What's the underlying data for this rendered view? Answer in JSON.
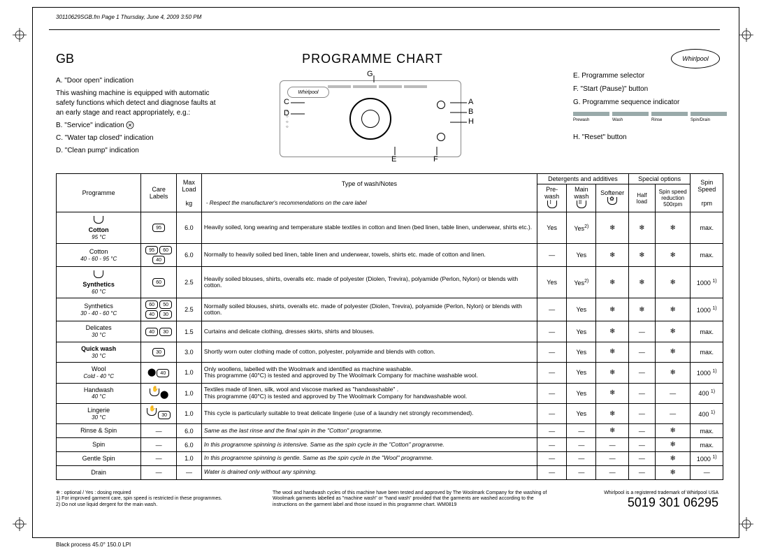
{
  "meta": {
    "header_line": "30110629SGB.fm  Page 1  Thursday, June 4, 2009  3:50 PM",
    "footer_process": "Black process 45.0° 150.0 LPI"
  },
  "title": {
    "gb": "GB",
    "main": "PROGRAMME CHART",
    "brand": "Whirlpool"
  },
  "legend_left": {
    "a": "A.  \"Door open\" indication",
    "a_desc": "This washing machine is equipped with automatic safety functions which detect and diagnose faults at an early stage and react appropriately, e.g.:",
    "b": "B.  \"Service\" indication",
    "c": "C.  \"Water tap closed\" indication",
    "d": "D.  \"Clean pump\" indication"
  },
  "legend_right": {
    "e": "E.  Programme selector",
    "f": "F.  \"Start (Pause)\" button",
    "g": "G.  Programme sequence indicator",
    "h": "H.  \"Reset\" button",
    "seq": [
      "Prewash",
      "Wash",
      "Rinse",
      "Spin/Drain"
    ]
  },
  "panel_letters": {
    "G": "G",
    "C": "C",
    "D": "D",
    "A": "A",
    "B": "B",
    "H": "H",
    "E": "E",
    "F": "F"
  },
  "table": {
    "headers": {
      "programme": "Programme",
      "care": "Care Labels",
      "maxload": "Max Load",
      "maxload_unit": "kg",
      "notes_hdr": "Type of wash/Notes",
      "notes_sub": "- Respect the manufacturer's recommendations on the care label",
      "detergents": "Detergents and additives",
      "prewash": "Pre-wash",
      "mainwash": "Main wash",
      "softener": "Softener",
      "special": "Special options",
      "halfload": "Half load",
      "spinred": "Spin speed reduction 500rpm",
      "spinspeed": "Spin Speed",
      "spinspeed_unit": "rpm"
    },
    "rows": [
      {
        "prog": "Cotton",
        "sub": "95 °C",
        "care": [
          "95"
        ],
        "load": "6.0",
        "notes": "Heavily soiled, long wearing and temperature stable textiles in cotton and linen (bed linen, table linen, underwear, shirts etc.).",
        "pw": "Yes",
        "mw": "Yes",
        "mw_sup": "2)",
        "so": "❄",
        "hl": "❄",
        "sr": "❄",
        "sp": "max.",
        "bold": true,
        "icon": "tub"
      },
      {
        "prog": "Cotton",
        "sub": "40 - 60 - 95 °C",
        "care": [
          "95",
          "60",
          "40"
        ],
        "load": "6.0",
        "notes": "Normally to heavily soiled bed linen, table linen and underwear, towels, shirts etc. made of cotton and linen.",
        "pw": "—",
        "mw": "Yes",
        "mw_sup": "",
        "so": "❄",
        "hl": "❄",
        "sr": "❄",
        "sp": "max."
      },
      {
        "prog": "Synthetics",
        "sub": "60 °C",
        "care": [
          "60"
        ],
        "load": "2.5",
        "notes": "Heavily soiled blouses, shirts, overalls etc. made of polyester (Diolen, Trevira), polyamide (Perlon, Nylon) or blends with cotton.",
        "pw": "Yes",
        "mw": "Yes",
        "mw_sup": "2)",
        "so": "❄",
        "hl": "❄",
        "sr": "❄",
        "sp": "1000",
        "sp_sup": "1)",
        "bold": true,
        "icon": "tub"
      },
      {
        "prog": "Synthetics",
        "sub": "30 - 40 - 60 °C",
        "care": [
          "60",
          "50",
          "40",
          "30"
        ],
        "load": "2.5",
        "notes": "Normally soiled blouses, shirts, overalls etc. made of polyester (Diolen, Trevira), polyamide (Perlon, Nylon) or blends with cotton.",
        "pw": "—",
        "mw": "Yes",
        "mw_sup": "",
        "so": "❄",
        "hl": "❄",
        "sr": "❄",
        "sp": "1000",
        "sp_sup": "1)"
      },
      {
        "prog": "Delicates",
        "sub": "30 °C",
        "care": [
          "40",
          "30"
        ],
        "load": "1.5",
        "notes": "Curtains and delicate clothing, dresses skirts, shirts and blouses.",
        "pw": "—",
        "mw": "Yes",
        "mw_sup": "",
        "so": "❄",
        "hl": "—",
        "sr": "❄",
        "sp": "max."
      },
      {
        "prog": "Quick wash",
        "sub": "30 °C",
        "care": [
          "30"
        ],
        "load": "3.0",
        "notes": "Shortly worn outer clothing made of cotton, polyester, polyamide and blends with cotton.",
        "pw": "—",
        "mw": "Yes",
        "mw_sup": "",
        "so": "❄",
        "hl": "—",
        "sr": "❄",
        "sp": "max.",
        "bold": true
      },
      {
        "prog": "Wool",
        "sub": "Cold - 40 °C",
        "care": [
          "⬤",
          "40"
        ],
        "load": "1.0",
        "notes": "Only woollens, labelled with the Woolmark and identified as machine washable.\nThis programme (40°C) is tested and approved by The Woolmark Company for machine washable wool.",
        "pw": "—",
        "mw": "Yes",
        "mw_sup": "",
        "so": "❄",
        "hl": "—",
        "sr": "❄",
        "sp": "1000",
        "sp_sup": "1)"
      },
      {
        "prog": "Handwash",
        "sub": "40 °C",
        "care": [
          "✋",
          "⬤"
        ],
        "load": "1.0",
        "notes": "Textiles made of linen, silk, wool and viscose marked as \"handwashable\" .\nThis programme (40°C) is tested and approved by The Woolmark Company for handwashable wool.",
        "pw": "—",
        "mw": "Yes",
        "mw_sup": "",
        "so": "❄",
        "hl": "—",
        "sr": "—",
        "sp": "400",
        "sp_sup": "1)"
      },
      {
        "prog": "Lingerie",
        "sub": "30 °C",
        "care": [
          "✋",
          "30"
        ],
        "load": "1.0",
        "notes": "This cycle is particularly suitable to treat delicate lingerie (use of a laundry net strongly recommended).",
        "pw": "—",
        "mw": "Yes",
        "mw_sup": "",
        "so": "❄",
        "hl": "—",
        "sr": "—",
        "sp": "400",
        "sp_sup": "1)"
      },
      {
        "prog": "Rinse & Spin",
        "sub": "",
        "care": [
          "—"
        ],
        "load": "6.0",
        "notes": "Same as the last rinse and the final spin in the \"Cotton\" programme.",
        "pw": "—",
        "mw": "—",
        "mw_sup": "",
        "so": "❄",
        "hl": "—",
        "sr": "❄",
        "sp": "max.",
        "italic": true
      },
      {
        "prog": "Spin",
        "sub": "",
        "care": [
          "—"
        ],
        "load": "6.0",
        "notes": "In this programme spinning is intensive. Same as the spin cycle in the \"Cotton\" programme.",
        "pw": "—",
        "mw": "—",
        "mw_sup": "",
        "so": "—",
        "hl": "—",
        "sr": "❄",
        "sp": "max.",
        "italic": true
      },
      {
        "prog": "Gentle Spin",
        "sub": "",
        "care": [
          "—"
        ],
        "load": "1.0",
        "notes": "In this programme spinning is gentle. Same as the spin cycle in the \"Wool\" programme.",
        "pw": "—",
        "mw": "—",
        "mw_sup": "",
        "so": "—",
        "hl": "—",
        "sr": "❄",
        "sp": "1000",
        "sp_sup": "1)",
        "italic": true
      },
      {
        "prog": "Drain",
        "sub": "",
        "care": [
          "—"
        ],
        "load": "—",
        "notes": "Water is drained only without any spinning.",
        "pw": "—",
        "mw": "—",
        "mw_sup": "",
        "so": "—",
        "hl": "—",
        "sr": "❄",
        "sp": "—",
        "italic": true
      }
    ]
  },
  "footer": {
    "left_1": "❄ : optional / Yes : dosing required",
    "left_2": "1) For improved garment care, spin speed is restricted in these programmes.",
    "left_3": "2) Do not use liquid dergent for the main wash.",
    "center": "The wool and handwash cycles of this machine have been tested and approved by The Woolmark Company for the washing of Woolmark garments labelled as \"machine wash\" or \"hand wash\" provided that the garments are washed according to the instructions on the garment label and those issued in this programme chart. WM0819",
    "right_small": "Whirlpool is a registered trademark of Whirlpool USA",
    "code": "5019 301 06295"
  }
}
